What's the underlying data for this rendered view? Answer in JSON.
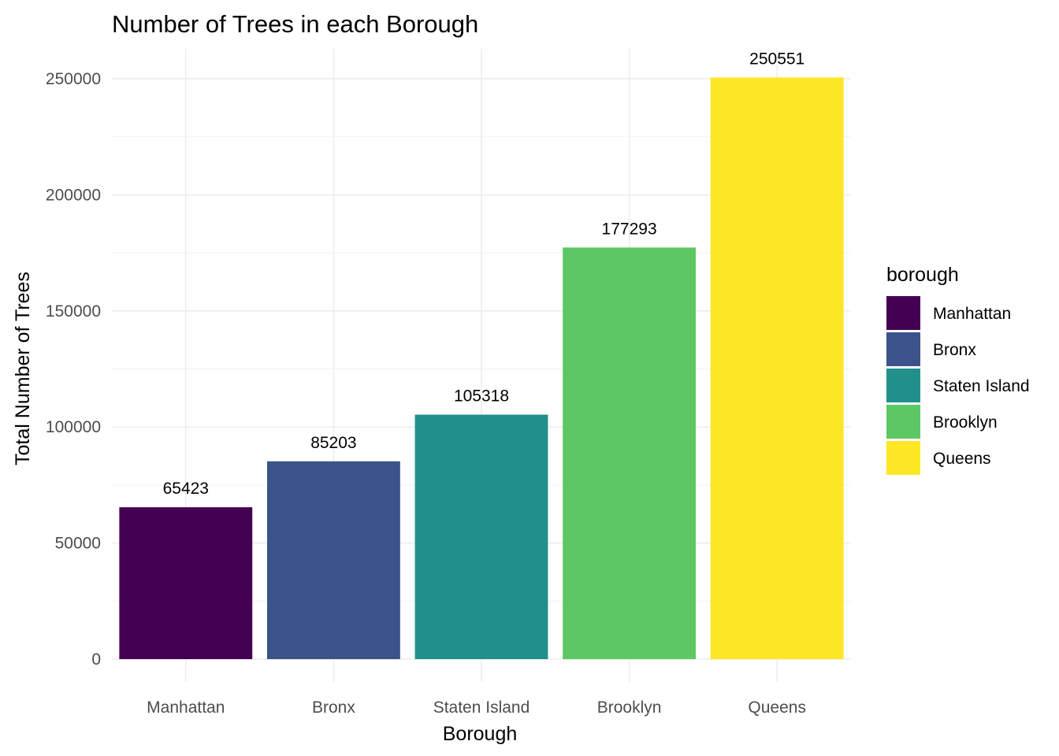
{
  "chart_data": {
    "type": "bar",
    "title": "Number of Trees in each Borough",
    "xlabel": "Borough",
    "ylabel": "Total Number of Trees",
    "categories": [
      "Manhattan",
      "Bronx",
      "Staten Island",
      "Brooklyn",
      "Queens"
    ],
    "values": [
      65423,
      85203,
      105318,
      177293,
      250551
    ],
    "data_labels": [
      "65423",
      "85203",
      "105318",
      "177293",
      "250551"
    ],
    "colors": [
      "#440154",
      "#3B528B",
      "#21908C",
      "#5DC863",
      "#FDE725"
    ],
    "ylim": [
      0,
      265000
    ],
    "yticks": [
      0,
      50000,
      100000,
      150000,
      200000,
      250000
    ],
    "ytick_labels": [
      "0",
      "50000",
      "100000",
      "150000",
      "200000",
      "250000"
    ],
    "grid": true,
    "legend": {
      "title": "borough",
      "placement": "right",
      "entries": [
        "Manhattan",
        "Bronx",
        "Staten Island",
        "Brooklyn",
        "Queens"
      ]
    }
  }
}
